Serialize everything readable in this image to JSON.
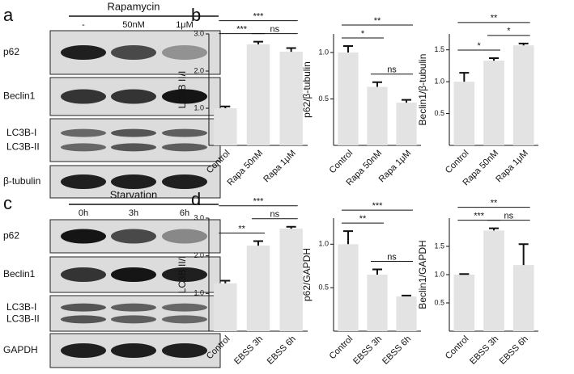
{
  "blots": [
    {
      "panel": "a",
      "treatment": "Rapamycin",
      "conditions": [
        "-",
        "50nM",
        "1μM"
      ],
      "rows": [
        [
          "p62"
        ],
        [
          "Beclin1"
        ],
        [
          "LC3B-I",
          "LC3B-II"
        ],
        [
          "β-tubulin"
        ]
      ]
    },
    {
      "panel": "c",
      "treatment": "Starvation",
      "conditions": [
        "0h",
        "3h",
        "6h"
      ],
      "rows": [
        [
          "p62"
        ],
        [
          "Beclin1"
        ],
        [
          "LC3B-I",
          "LC3B-II"
        ],
        [
          "GAPDH"
        ]
      ]
    }
  ],
  "chart_data": [
    {
      "type": "bar",
      "panel": "b",
      "ylabel": "LC3B II/I",
      "categories": [
        "Control",
        "Rapa 50nM",
        "Rapa 1μM"
      ],
      "values": [
        1.0,
        2.72,
        2.52
      ],
      "errors": [
        0.05,
        0.07,
        0.1
      ],
      "color": "#e3e3e3",
      "ylim": [
        0,
        3.0
      ],
      "yticks": [
        {
          "value": 1,
          "label": "1.0"
        },
        {
          "value": 2,
          "label": "2.0"
        },
        {
          "value": 3,
          "label": "3.0"
        }
      ],
      "significance": [
        {
          "pair": [
            "Control",
            "Rapa 50nM"
          ],
          "label": "***"
        },
        {
          "pair": [
            "Control",
            "Rapa 1μM"
          ],
          "label": "***"
        },
        {
          "pair": [
            "Rapa 50nM",
            "Rapa 1μM"
          ],
          "label": "ns"
        }
      ]
    },
    {
      "type": "bar",
      "ylabel": "p62/β-tubulin",
      "categories": [
        "Control",
        "Rapa 50nM",
        "Rapa 1μM"
      ],
      "values": [
        1.0,
        0.63,
        0.46
      ],
      "errors": [
        0.07,
        0.05,
        0.03
      ],
      "color": "#e3e3e3",
      "ylim": [
        0,
        1.2
      ],
      "yticks": [
        {
          "value": 0.5,
          "label": "0.5"
        },
        {
          "value": 1,
          "label": "1.0"
        }
      ],
      "significance": [
        {
          "pair": [
            "Control",
            "Rapa 50nM"
          ],
          "label": "*"
        },
        {
          "pair": [
            "Control",
            "Rapa 1μM"
          ],
          "label": "**"
        },
        {
          "pair": [
            "Rapa 50nM",
            "Rapa 1μM"
          ],
          "label": "ns"
        }
      ]
    },
    {
      "type": "bar",
      "ylabel": "Beclin1/β-tubulin",
      "categories": [
        "Control",
        "Rapa 50nM",
        "Rapa 1μM"
      ],
      "values": [
        1.0,
        1.33,
        1.57
      ],
      "errors": [
        0.14,
        0.04,
        0.03
      ],
      "color": "#e3e3e3",
      "ylim": [
        0,
        1.75
      ],
      "yticks": [
        {
          "value": 0.5,
          "label": "0.5"
        },
        {
          "value": 1,
          "label": "1.0"
        },
        {
          "value": 1.5,
          "label": "1.5"
        }
      ],
      "significance": [
        {
          "pair": [
            "Control",
            "Rapa 50nM"
          ],
          "label": "*"
        },
        {
          "pair": [
            "Control",
            "Rapa 1μM"
          ],
          "label": "**"
        },
        {
          "pair": [
            "Rapa 50nM",
            "Rapa 1μM"
          ],
          "label": "*"
        }
      ]
    },
    {
      "type": "bar",
      "panel": "d",
      "ylabel": "LC3B II/I",
      "categories": [
        "Control",
        "EBSS 3h",
        "EBSS 6h"
      ],
      "values": [
        1.27,
        2.27,
        2.72
      ],
      "errors": [
        0.07,
        0.12,
        0.05
      ],
      "color": "#e3e3e3",
      "ylim": [
        0,
        3.0
      ],
      "yticks": [
        {
          "value": 1,
          "label": "1.0"
        },
        {
          "value": 2,
          "label": "2.0"
        },
        {
          "value": 3,
          "label": "3.0"
        }
      ],
      "significance": [
        {
          "pair": [
            "Control",
            "EBSS 3h"
          ],
          "label": "**"
        },
        {
          "pair": [
            "Control",
            "EBSS 6h"
          ],
          "label": "***"
        },
        {
          "pair": [
            "EBSS 3h",
            "EBSS 6h"
          ],
          "label": "ns"
        }
      ]
    },
    {
      "type": "bar",
      "ylabel": "p62/GAPDH",
      "categories": [
        "Control",
        "EBSS 3h",
        "EBSS 6h"
      ],
      "values": [
        1.0,
        0.65,
        0.4
      ],
      "errors": [
        0.15,
        0.06,
        0.01
      ],
      "color": "#e3e3e3",
      "ylim": [
        0,
        1.3
      ],
      "yticks": [
        {
          "value": 0.5,
          "label": "0.5"
        },
        {
          "value": 1,
          "label": "1.0"
        }
      ],
      "significance": [
        {
          "pair": [
            "Control",
            "EBSS 3h"
          ],
          "label": "**"
        },
        {
          "pair": [
            "Control",
            "EBSS 6h"
          ],
          "label": "***"
        },
        {
          "pair": [
            "EBSS 3h",
            "EBSS 6h"
          ],
          "label": "ns"
        }
      ]
    },
    {
      "type": "bar",
      "ylabel": "Beclin1/GAPDH",
      "categories": [
        "Control",
        "EBSS 3h",
        "EBSS 6h"
      ],
      "values": [
        1.0,
        1.78,
        1.17
      ],
      "errors": [
        0.01,
        0.04,
        0.37
      ],
      "color": "#e3e3e3",
      "ylim": [
        0,
        2.0
      ],
      "yticks": [
        {
          "value": 0.5,
          "label": "0.5"
        },
        {
          "value": 1,
          "label": "1.0"
        },
        {
          "value": 1.5,
          "label": "1.5"
        }
      ],
      "significance": [
        {
          "pair": [
            "Control",
            "EBSS 3h"
          ],
          "label": "***"
        },
        {
          "pair": [
            "Control",
            "EBSS 6h"
          ],
          "label": "**"
        },
        {
          "pair": [
            "EBSS 3h",
            "EBSS 6h"
          ],
          "label": "ns"
        }
      ]
    }
  ]
}
